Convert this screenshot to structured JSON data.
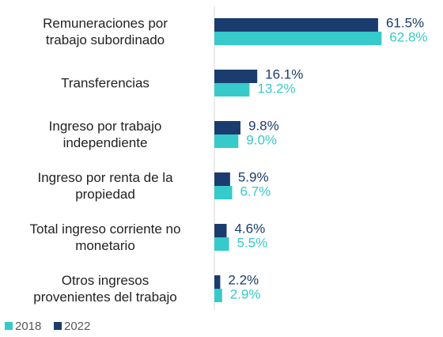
{
  "chart_data": {
    "type": "bar",
    "orientation": "horizontal",
    "categories": [
      "Remuneraciones por\ntrabajo subordinado",
      "Transferencias",
      "Ingreso por trabajo\nindependiente",
      "Ingreso por renta de la\npropiedad",
      "Total ingreso corriente no\nmonetario",
      "Otros ingresos\nprovenientes del trabajo"
    ],
    "series": [
      {
        "name": "2018",
        "color": "#36caca",
        "values": [
          62.8,
          13.2,
          9.0,
          6.7,
          5.5,
          2.9
        ],
        "value_labels": [
          "62.8%",
          "13.2%",
          "9.0%",
          "6.7%",
          "5.5%",
          "2.9%"
        ]
      },
      {
        "name": "2022",
        "color": "#1b3c6e",
        "values": [
          61.5,
          16.1,
          9.8,
          5.9,
          4.6,
          2.2
        ],
        "value_labels": [
          "61.5%",
          "16.1%",
          "9.8%",
          "5.9%",
          "4.6%",
          "2.2%"
        ]
      }
    ],
    "xlim": [
      0,
      63
    ],
    "legend": "bottom-left"
  }
}
